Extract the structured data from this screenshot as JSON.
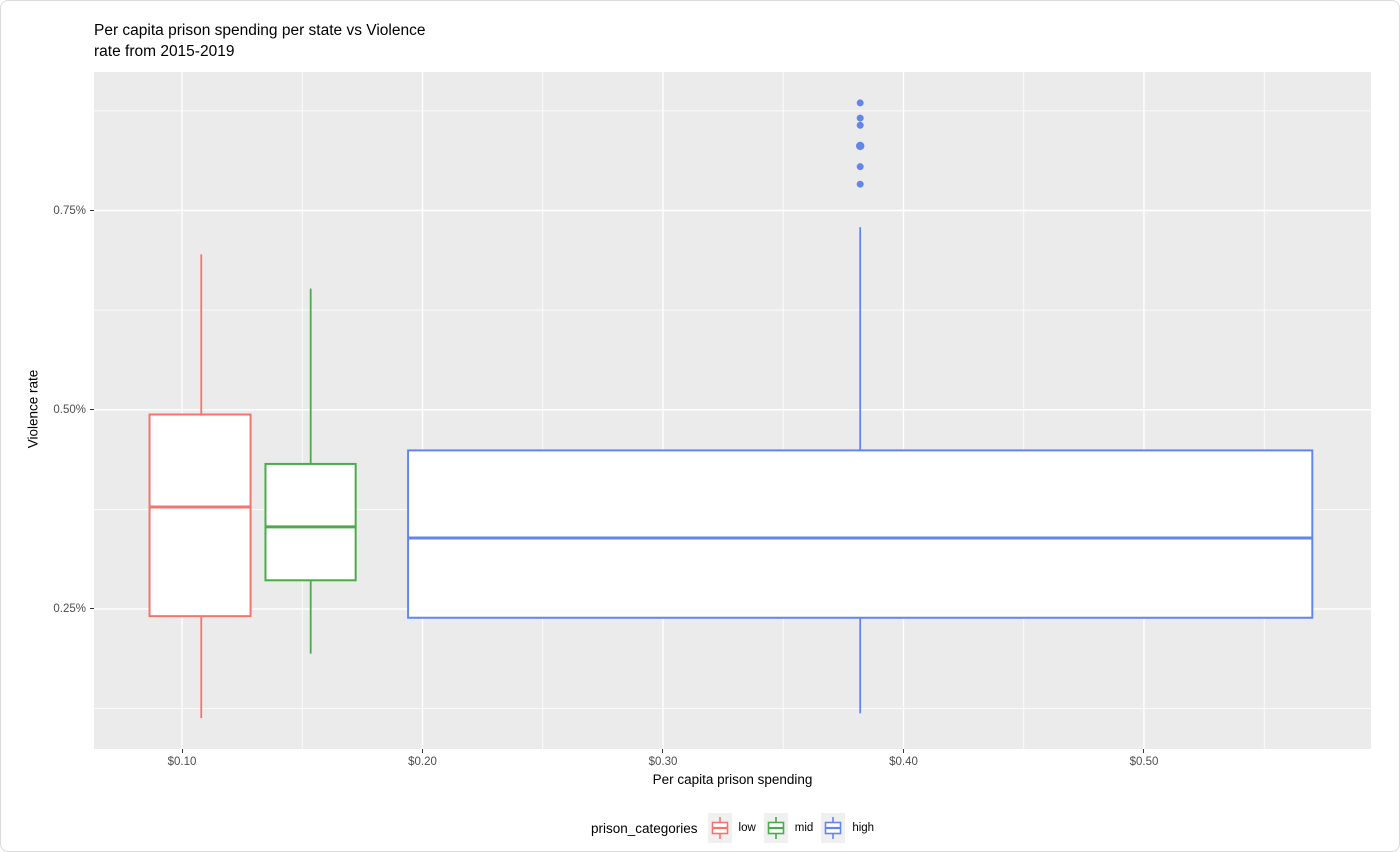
{
  "title": {
    "line1": "Per capita prison spending per state vs Violence",
    "line2": "rate from 2015-2019"
  },
  "axes": {
    "x_title": "Per capita prison spending",
    "y_title": "Violence rate"
  },
  "colors": {
    "panel_bg": "#EBEBEB",
    "gridline": "#FFFFFF",
    "tick_text": "#4D4D4D",
    "title_text": "#000000",
    "low": "#F2766D",
    "mid": "#49AC49",
    "high": "#6487E7",
    "legend_key_bg": "#F0F0F0",
    "box_fill": "#FFFFFF"
  },
  "chart_data": {
    "type": "boxplot",
    "title": "Per capita prison spending per state vs Violence rate from 2015-2019",
    "xlabel": "Per capita prison spending",
    "ylabel": "Violence rate",
    "grid": "on",
    "x_axis": {
      "tick_labels": [
        "$0.10",
        "$0.20",
        "$0.30",
        "$0.40",
        "$0.50"
      ],
      "tick_values": [
        0.1,
        0.2,
        0.3,
        0.4,
        0.5
      ],
      "minor_ticks": [
        0.15,
        0.25,
        0.35,
        0.45,
        0.55
      ],
      "range": [
        0.0634,
        0.5944
      ],
      "unit": "dollars"
    },
    "y_axis": {
      "tick_labels": [
        "0.25%",
        "0.50%",
        "0.75%"
      ],
      "tick_values": [
        0.25,
        0.5,
        0.75
      ],
      "minor_ticks": [
        0.125,
        0.375,
        0.625,
        0.875
      ],
      "range": [
        0.0743,
        0.9238
      ],
      "unit": "percent"
    },
    "series": [
      {
        "name": "low",
        "color": "#F2766D",
        "x_center": 0.108,
        "box_left": 0.0865,
        "box_right": 0.1285,
        "whisker_low": 0.113,
        "q1": 0.241,
        "median": 0.378,
        "q3": 0.494,
        "whisker_high": 0.695,
        "outliers": [],
        "outlier_sizes": []
      },
      {
        "name": "mid",
        "color": "#49AC49",
        "x_center": 0.1535,
        "box_left": 0.1347,
        "box_right": 0.1722,
        "whisker_low": 0.194,
        "q1": 0.286,
        "median": 0.353,
        "q3": 0.432,
        "whisker_high": 0.652,
        "outliers": [],
        "outlier_sizes": []
      },
      {
        "name": "high",
        "color": "#6487E7",
        "x_center": 0.382,
        "box_left": 0.194,
        "box_right": 0.57,
        "whisker_low": 0.119,
        "q1": 0.239,
        "median": 0.339,
        "q3": 0.449,
        "whisker_high": 0.729,
        "outliers": [
          0.783,
          0.805,
          0.831,
          0.857,
          0.866,
          0.885
        ],
        "outlier_sizes": [
          3.5,
          3.5,
          4.2,
          3.5,
          3.5,
          3.5
        ]
      }
    ],
    "legend": {
      "title": "prison_categories",
      "position": "bottom",
      "items": [
        {
          "label": "low",
          "color": "#F2766D"
        },
        {
          "label": "mid",
          "color": "#49AC49"
        },
        {
          "label": "high",
          "color": "#6487E7"
        }
      ]
    }
  }
}
